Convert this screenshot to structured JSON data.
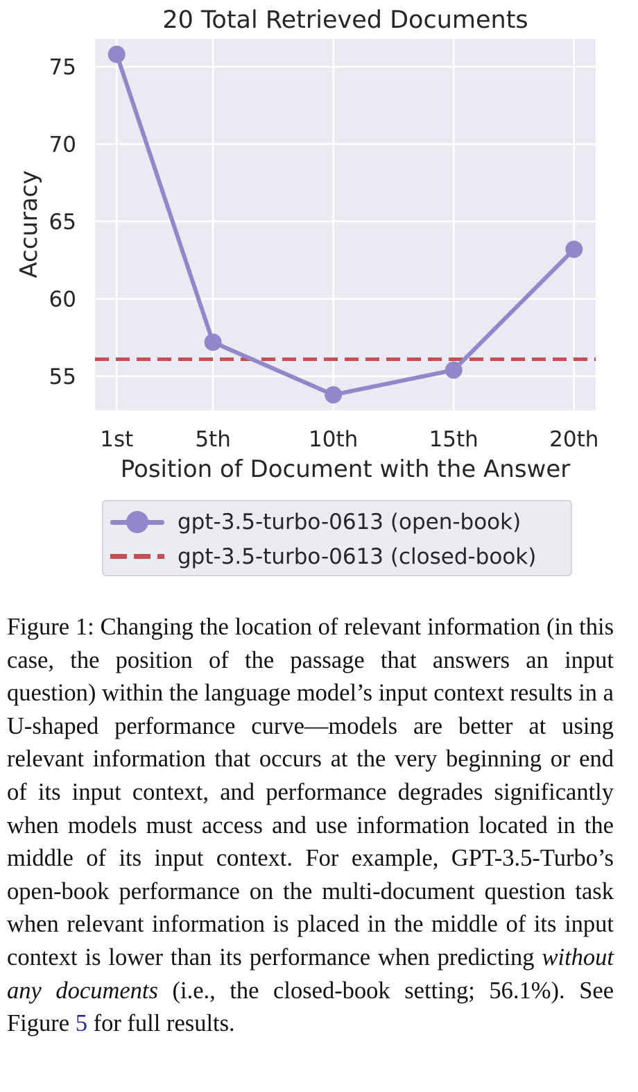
{
  "chart_data": {
    "type": "line",
    "title": "20 Total Retrieved Documents",
    "xlabel": "Position of Document with the Answer",
    "ylabel": "Accuracy",
    "categories": [
      "1st",
      "5th",
      "10th",
      "15th",
      "20th"
    ],
    "x": [
      1,
      5,
      10,
      15,
      20
    ],
    "xlim": [
      0.1,
      20.9
    ],
    "ylim": [
      52.8,
      76.8
    ],
    "yticks": [
      55,
      60,
      65,
      70,
      75
    ],
    "grid": true,
    "legend_position": "bottom-center",
    "series": [
      {
        "name": "gpt-3.5-turbo-0613 (open-book)",
        "values": [
          75.8,
          57.2,
          53.8,
          55.4,
          63.2
        ],
        "color": "#9088c8",
        "style": "solid-markers"
      },
      {
        "name": "gpt-3.5-turbo-0613 (closed-book)",
        "constant": 56.1,
        "color": "#c44e52",
        "style": "dashed"
      }
    ]
  },
  "caption": {
    "label": "Figure 1:",
    "text_before": "Changing the location of relevant information (in this case, the position of the passage that answers an input question) within the language model’s input context results in a U-shaped performance curve—models are better at using relevant information that occurs at the very beginning or end of its input context, and performance degrades significantly when models must access and use information located in the middle of its input context. For example, GPT-3.5-Turbo’s open-book performance on the multi-document question task when relevant information is placed in the middle of its input context is lower than its performance when predicting",
    "emphasis": "without any documents",
    "text_middle": "(i.e., the closed-book setting; 56.1%). See Figure",
    "ref": "5",
    "text_after": "for full results."
  }
}
